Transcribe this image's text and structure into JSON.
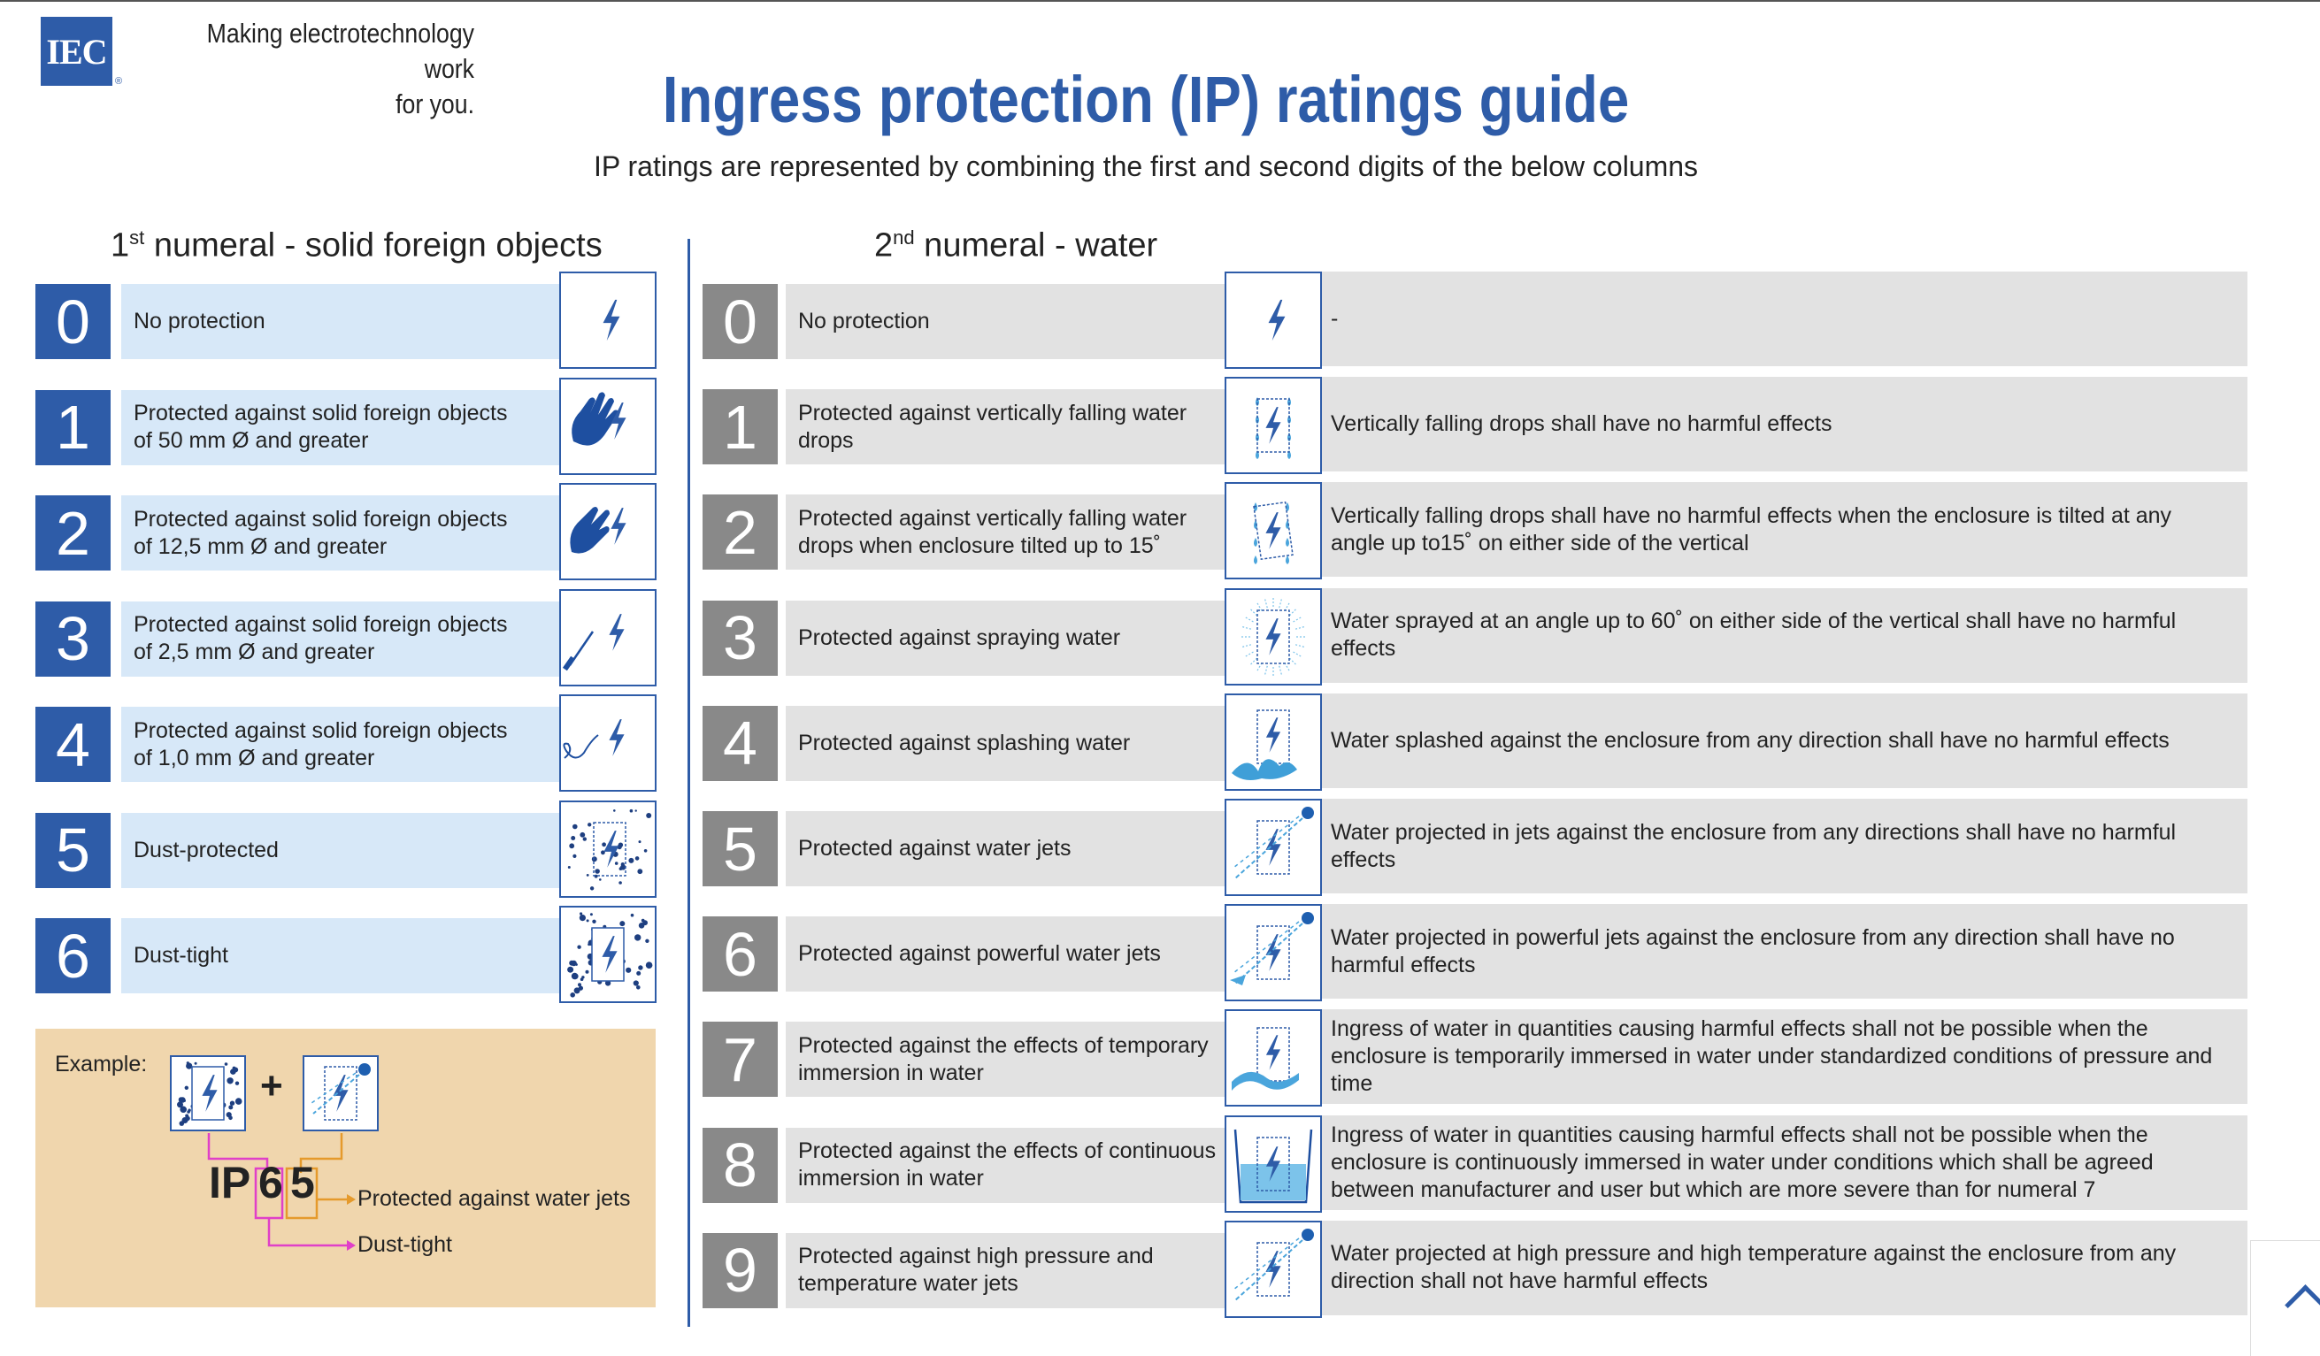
{
  "brand": {
    "logo_text": "IEC",
    "registered": "®",
    "tagline_line1": "Making  electrotechnology work",
    "tagline_line2": "for you."
  },
  "title": "Ingress protection (IP) ratings guide",
  "subtitle": "IP ratings are represented by combining the first and second digits of the below columns",
  "first_column": {
    "heading_pre": "1",
    "heading_sup": "st",
    "heading_rest": " numeral - solid foreign objects",
    "rows": [
      {
        "num": "0",
        "text": "No protection",
        "icon": "enclosure-bolt-icon"
      },
      {
        "num": "1",
        "text": "Protected against solid foreign objects of 50 mm Ø and greater",
        "icon": "hand-icon"
      },
      {
        "num": "2",
        "text": "Protected against solid foreign objects of 12,5 mm Ø and greater",
        "icon": "finger-icon"
      },
      {
        "num": "3",
        "text": "Protected against solid foreign objects of 2,5 mm Ø and greater",
        "icon": "screwdriver-icon"
      },
      {
        "num": "4",
        "text": "Protected against solid foreign objects of 1,0 mm Ø and greater",
        "icon": "wire-icon"
      },
      {
        "num": "5",
        "text": "Dust-protected",
        "icon": "dust-icon"
      },
      {
        "num": "6",
        "text": "Dust-tight",
        "icon": "dust-tight-icon"
      }
    ]
  },
  "second_column": {
    "heading_pre": "2",
    "heading_sup": "nd",
    "heading_rest": " numeral - water",
    "rows": [
      {
        "num": "0",
        "text": "No protection",
        "desc": "-",
        "icon": "enclosure-bolt-icon"
      },
      {
        "num": "1",
        "text": "Protected against vertically falling water drops",
        "desc": "Vertically falling drops shall have no harmful effects",
        "icon": "falling-drops-icon"
      },
      {
        "num": "2",
        "text": "Protected against vertically falling water drops when enclosure tilted up to 15˚",
        "desc": "Vertically falling drops shall have no harmful effects when the enclosure is tilted at any angle up to15˚ on either side of the vertical",
        "icon": "tilted-drops-icon"
      },
      {
        "num": "3",
        "text": "Protected against spraying water",
        "desc": "Water sprayed at an angle up to 60˚ on either side of the vertical shall have no harmful effects",
        "icon": "spray-icon"
      },
      {
        "num": "4",
        "text": "Protected against splashing water",
        "desc": "Water splashed against the enclosure from any direction shall have no harmful effects",
        "icon": "splash-icon"
      },
      {
        "num": "5",
        "text": "Protected against water jets",
        "desc": "Water projected in jets against the enclosure from any directions shall have no harmful effects",
        "icon": "water-jet-icon"
      },
      {
        "num": "6",
        "text": "Protected against powerful water jets",
        "desc": "Water projected in powerful jets against the enclosure from any direction shall have no harmful effects",
        "icon": "powerful-jet-icon"
      },
      {
        "num": "7",
        "text": "Protected against the effects of temporary immersion in water",
        "desc": "Ingress of water in quantities causing harmful effects shall not be possible when the enclosure is temporarily immersed in water under standardized conditions of pressure and time",
        "icon": "wave-icon"
      },
      {
        "num": "8",
        "text": "Protected against the effects of continuous immersion in water",
        "desc": "Ingress of water in quantities causing harmful effects shall not be possible when the enclosure is continuously immersed in water under conditions which shall be agreed between manufacturer and user but which are more severe than for numeral 7",
        "icon": "immersion-icon"
      },
      {
        "num": "9",
        "text": "Protected against high pressure and temperature water jets",
        "desc": "Water projected at high pressure and high temperature against the enclosure from any direction shall not have harmful effects",
        "icon": "high-pressure-jet-icon"
      }
    ]
  },
  "example": {
    "label": "Example:",
    "plus": "+",
    "code_prefix": "IP",
    "digit1": "6",
    "digit2": "5",
    "digit2_meaning": "Protected against water jets",
    "digit1_meaning": "Dust-tight"
  },
  "colors": {
    "blue": "#2e5ca8",
    "light_blue": "#d7e8f8",
    "gray": "#898989",
    "light_gray": "#e2e2e2",
    "example_bg": "#f0d6ad",
    "pink": "#e040c8",
    "orange": "#e59a2c"
  }
}
